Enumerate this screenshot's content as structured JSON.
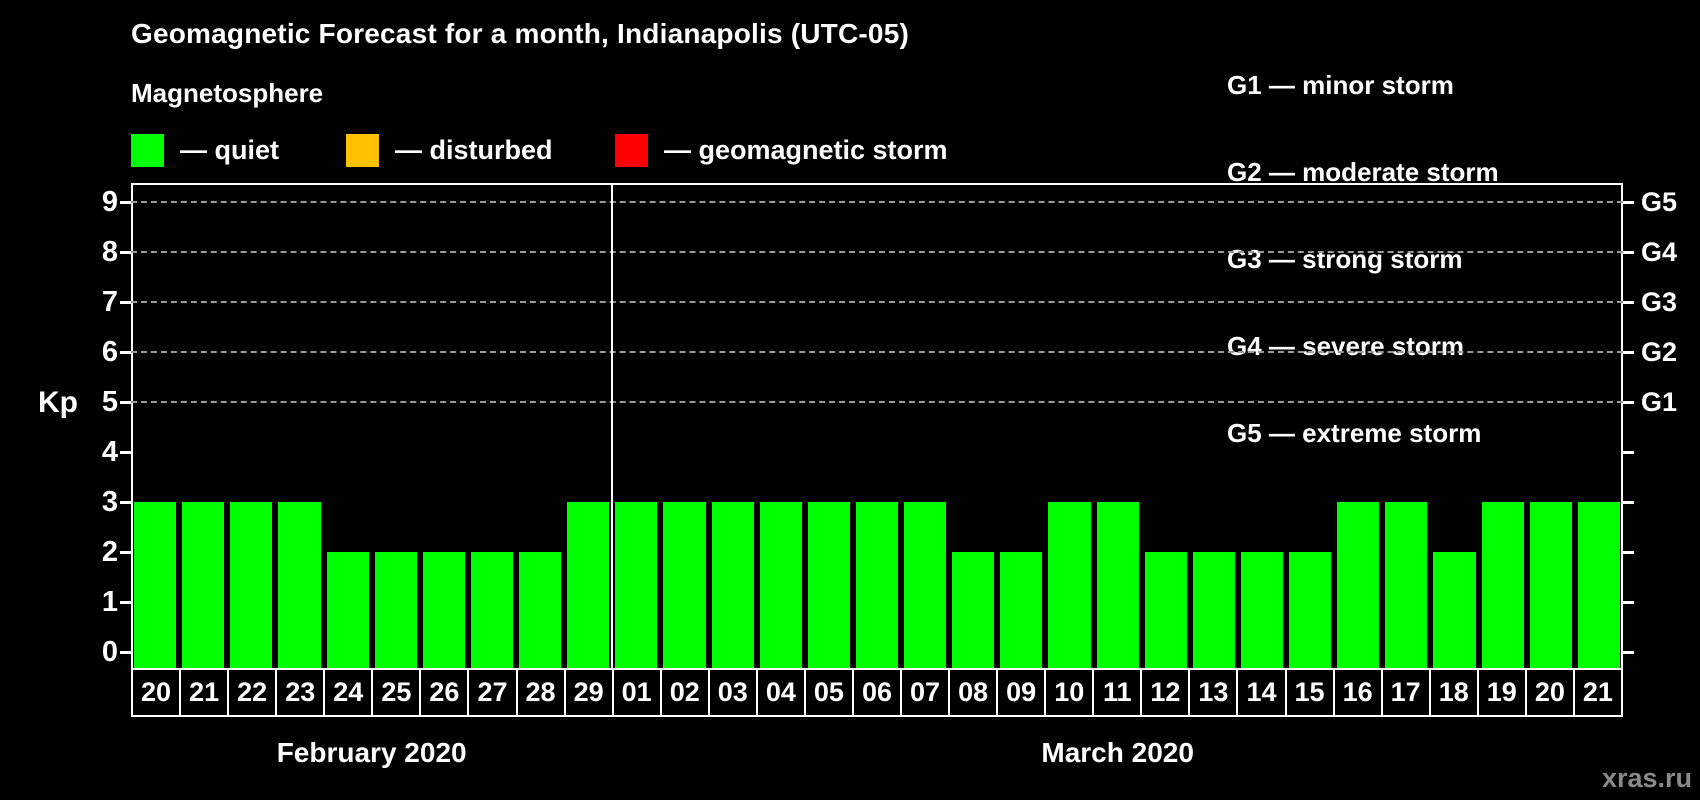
{
  "title": "Geomagnetic Forecast for a month, Indianapolis (UTC-05)",
  "subtitle": "Magnetosphere",
  "legend": {
    "items": [
      {
        "name": "quiet",
        "label": "— quiet",
        "color": "#00ff00"
      },
      {
        "name": "disturbed",
        "label": "— disturbed",
        "color": "#ffc000"
      },
      {
        "name": "geomagnetic-storm",
        "label": "— geomagnetic storm",
        "color": "#ff0000"
      }
    ]
  },
  "storm_legend": [
    "G1 — minor storm",
    "G2 — moderate storm",
    "G3 — strong storm",
    "G4 — severe storm",
    "G5 — extreme storm"
  ],
  "watermark": "xras.ru",
  "chart_data": {
    "type": "bar",
    "title": "Geomagnetic Forecast for a month, Indianapolis (UTC-05)",
    "ylabel": "Kp",
    "ylim": [
      0,
      9
    ],
    "yticks": [
      0,
      1,
      2,
      3,
      4,
      5,
      6,
      7,
      8,
      9
    ],
    "gridlines_at_kp": [
      5,
      6,
      7,
      8,
      9
    ],
    "grid": "dashed-horizontal",
    "legend_position": "top",
    "bar_color": "#00ff00",
    "status_colors": {
      "quiet": "#00ff00",
      "disturbed": "#ffc000",
      "storm": "#ff0000"
    },
    "right_axis_ticks": [
      {
        "kp": 5,
        "label": "G1"
      },
      {
        "kp": 6,
        "label": "G2"
      },
      {
        "kp": 7,
        "label": "G3"
      },
      {
        "kp": 8,
        "label": "G4"
      },
      {
        "kp": 9,
        "label": "G5"
      }
    ],
    "months": [
      {
        "name": "February 2020",
        "categories": [
          "20",
          "21",
          "22",
          "23",
          "24",
          "25",
          "26",
          "27",
          "28",
          "29"
        ],
        "values": [
          3,
          3,
          3,
          3,
          2,
          2,
          2,
          2,
          2,
          3
        ],
        "status": [
          "quiet",
          "quiet",
          "quiet",
          "quiet",
          "quiet",
          "quiet",
          "quiet",
          "quiet",
          "quiet",
          "quiet"
        ]
      },
      {
        "name": "March 2020",
        "categories": [
          "01",
          "02",
          "03",
          "04",
          "05",
          "06",
          "07",
          "08",
          "09",
          "10",
          "11",
          "12",
          "13",
          "14",
          "15",
          "16",
          "17",
          "18",
          "19",
          "20",
          "21"
        ],
        "values": [
          3,
          3,
          3,
          3,
          3,
          3,
          3,
          2,
          2,
          3,
          3,
          2,
          2,
          2,
          2,
          3,
          3,
          2,
          3,
          3,
          3
        ],
        "status": [
          "quiet",
          "quiet",
          "quiet",
          "quiet",
          "quiet",
          "quiet",
          "quiet",
          "quiet",
          "quiet",
          "quiet",
          "quiet",
          "quiet",
          "quiet",
          "quiet",
          "quiet",
          "quiet",
          "quiet",
          "quiet",
          "quiet",
          "quiet",
          "quiet"
        ]
      }
    ]
  }
}
